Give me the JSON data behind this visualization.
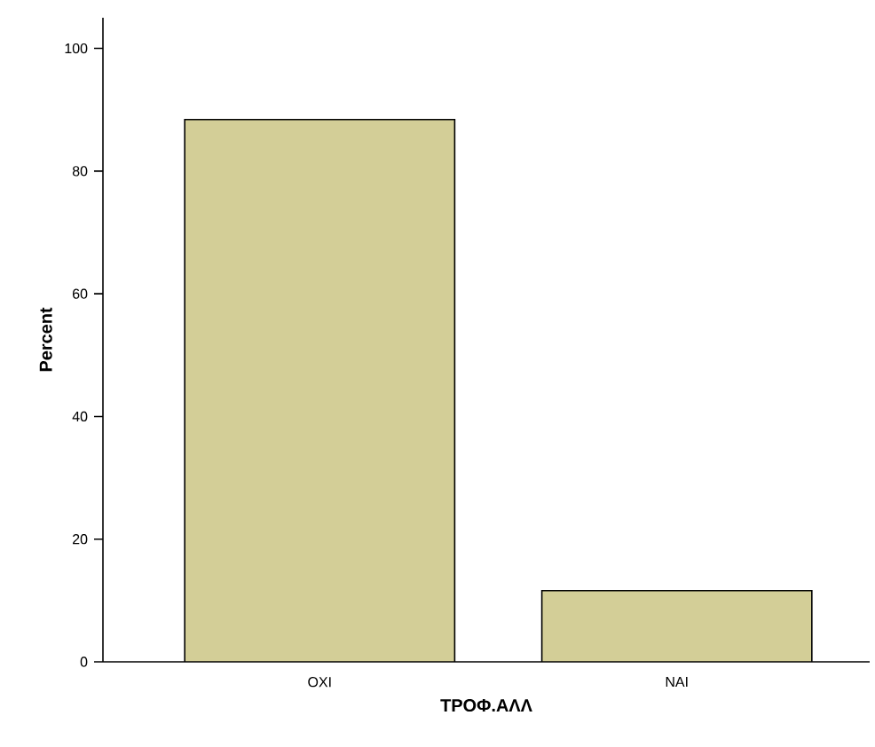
{
  "chart_data": {
    "type": "bar",
    "xlabel": "ΤΡΟΦ.ΑΛΛ",
    "ylabel": "Percent",
    "categories": [
      "ΟΧΙ",
      "ΝΑΙ"
    ],
    "values": [
      88.4,
      11.6
    ],
    "color": "#d3ce97",
    "ylim": [
      0,
      105
    ],
    "yticks": [
      0,
      20,
      40,
      60,
      80,
      100
    ],
    "grid": false
  }
}
